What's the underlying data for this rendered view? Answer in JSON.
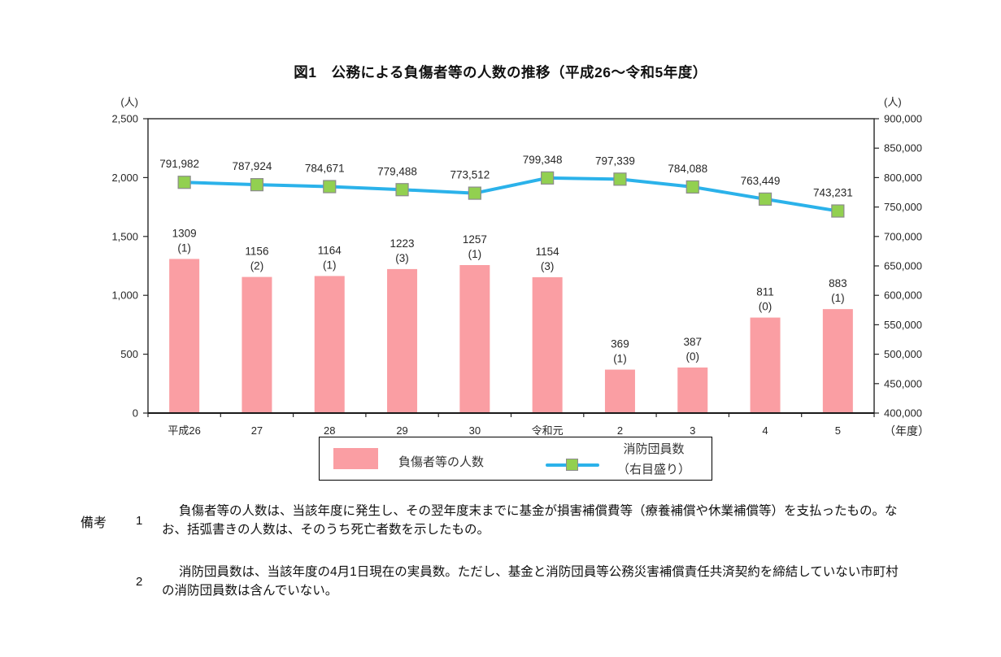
{
  "title": "図1　公務による負傷者等の人数の推移（平成26～令和5年度）",
  "chart_data": {
    "type": "combo",
    "title": "図1　公務による負傷者等の人数の推移（平成26～令和5年度）",
    "categories": [
      "平成26",
      "27",
      "28",
      "29",
      "30",
      "令和元",
      "2",
      "3",
      "4",
      "5"
    ],
    "x_unit": "（年度）",
    "series": [
      {
        "name": "負傷者等の人数",
        "type": "bar",
        "axis": "left",
        "values": [
          1309,
          1156,
          1164,
          1223,
          1257,
          1154,
          369,
          387,
          811,
          883
        ],
        "deaths_in_parentheses": [
          1,
          2,
          1,
          3,
          1,
          3,
          1,
          0,
          0,
          1
        ],
        "color": "#FA9EA3"
      },
      {
        "name": "消防団員数（右目盛り）",
        "type": "line",
        "axis": "right",
        "values": [
          791982,
          787924,
          784671,
          779488,
          773512,
          799348,
          797339,
          784088,
          763449,
          743231
        ],
        "line_color": "#2BB2EA",
        "marker_color": "#92D050",
        "marker_edge_color": "#8c8c8c"
      }
    ],
    "left_axis": {
      "unit": "(人)",
      "min": 0,
      "max": 2500,
      "step": 500
    },
    "right_axis": {
      "unit": "(人)",
      "min": 400000,
      "max": 900000,
      "step": 50000
    },
    "grid": false,
    "legend_position": "bottom"
  },
  "legend": {
    "bar_label": "負傷者等の人数",
    "line_label_line1": "消防団員数",
    "line_label_line2": "（右目盛り）"
  },
  "notes": {
    "label": "備考",
    "items": [
      {
        "number": "1",
        "text": "負傷者等の人数は、当該年度に発生し、その翌年度末までに基金が損害補償費等（療養補償や休業補償等）を支払ったもの。なお、括弧書きの人数は、そのうち死亡者数を示したもの。"
      },
      {
        "number": "2",
        "text": "消防団員数は、当該年度の4月1日現在の実員数。ただし、基金と消防団員等公務災害補償責任共済契約を締結していない市町村の消防団員数は含んでいない。"
      }
    ]
  }
}
